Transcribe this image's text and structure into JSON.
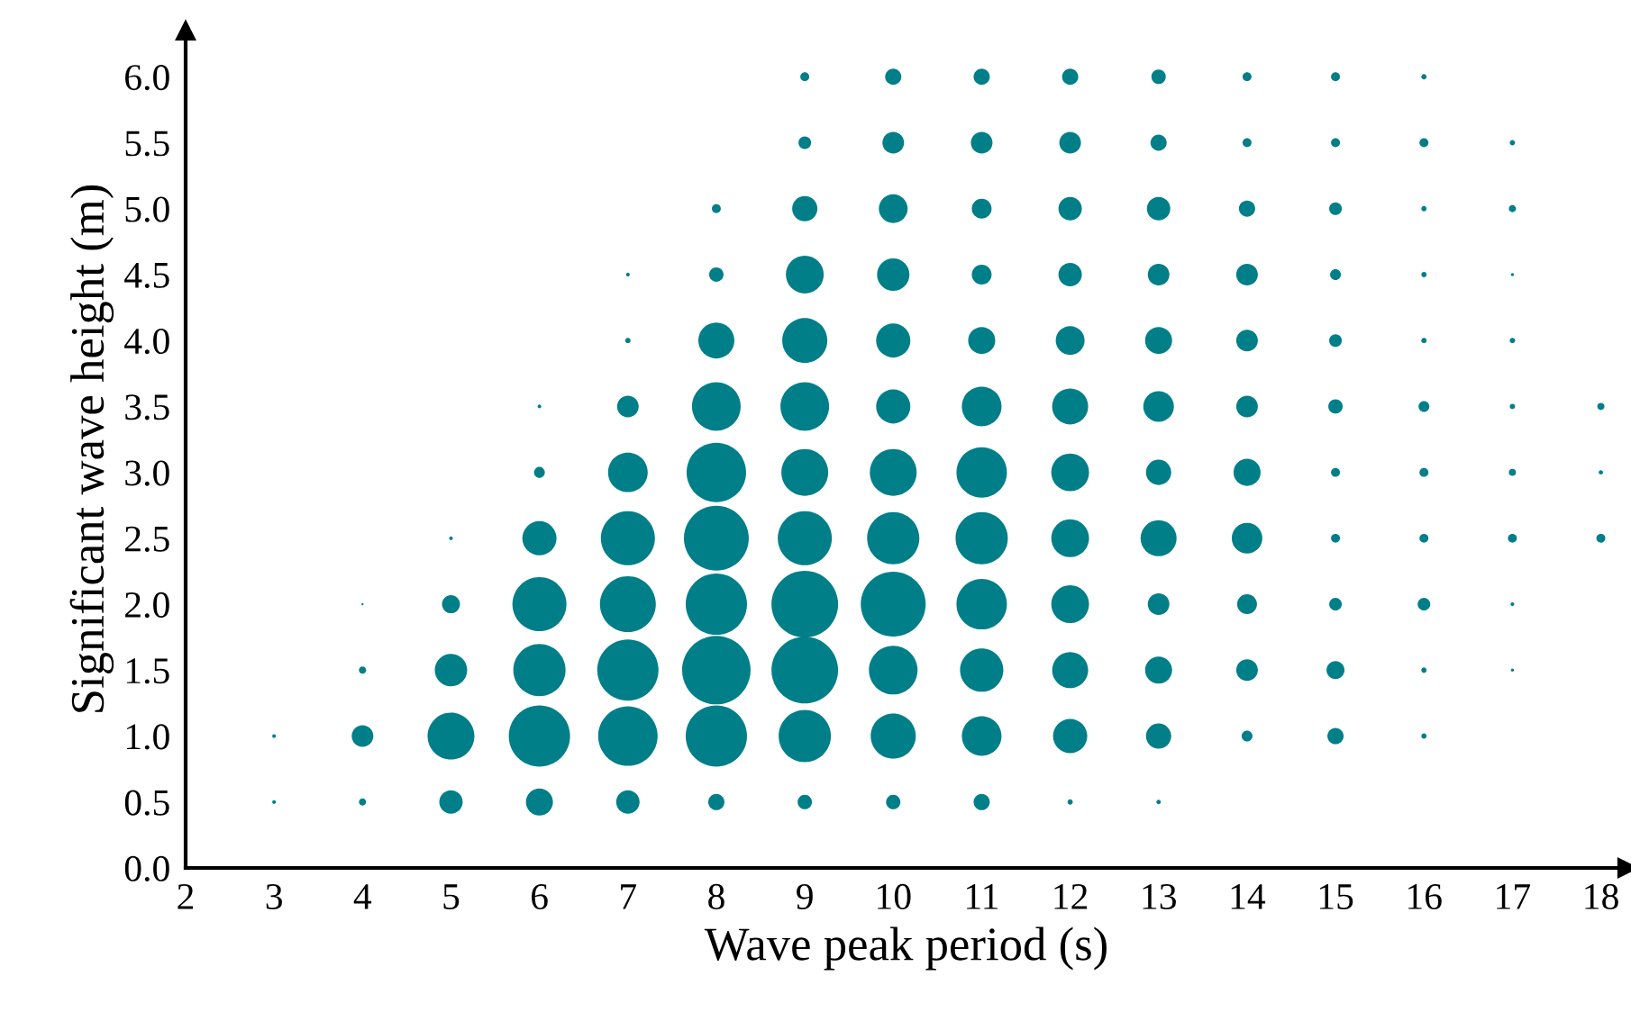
{
  "chart_data": {
    "type": "bubble",
    "xlabel": "Wave peak period (s)",
    "ylabel": "Significant wave height (m)",
    "xlim": [
      2,
      18.3
    ],
    "ylim": [
      0,
      6.35
    ],
    "xticks": [
      2,
      3,
      4,
      5,
      6,
      7,
      8,
      9,
      10,
      11,
      12,
      13,
      14,
      15,
      16,
      17,
      18
    ],
    "yticks": [
      {
        "value": 0,
        "label": "0.0"
      },
      {
        "value": 0.5,
        "label": "0.5"
      },
      {
        "value": 1,
        "label": "1.0"
      },
      {
        "value": 1.5,
        "label": "1.5"
      },
      {
        "value": 2,
        "label": "2.0"
      },
      {
        "value": 2.5,
        "label": "2.5"
      },
      {
        "value": 3,
        "label": "3.0"
      },
      {
        "value": 3.5,
        "label": "3.5"
      },
      {
        "value": 4,
        "label": "4.0"
      },
      {
        "value": 4.5,
        "label": "4.5"
      },
      {
        "value": 5,
        "label": "5.0"
      },
      {
        "value": 5.5,
        "label": "5.5"
      },
      {
        "value": 6,
        "label": "6.0"
      }
    ],
    "grid": false,
    "legend": false,
    "series": [
      {
        "color": "#007f89",
        "x": [
          3,
          3,
          4,
          4,
          4,
          4,
          5,
          5,
          5,
          5,
          5,
          6,
          6,
          6,
          6,
          6,
          6,
          6,
          7,
          7,
          7,
          7,
          7,
          7,
          7,
          7,
          7,
          8,
          8,
          8,
          8,
          8,
          8,
          8,
          8,
          8,
          8,
          9,
          9,
          9,
          9,
          9,
          9,
          9,
          9,
          9,
          9,
          9,
          9,
          10,
          10,
          10,
          10,
          10,
          10,
          10,
          10,
          10,
          10,
          10,
          10,
          11,
          11,
          11,
          11,
          11,
          11,
          11,
          11,
          11,
          11,
          11,
          11,
          12,
          12,
          12,
          12,
          12,
          12,
          12,
          12,
          12,
          12,
          12,
          12,
          13,
          13,
          13,
          13,
          13,
          13,
          13,
          13,
          13,
          13,
          13,
          13,
          14,
          14,
          14,
          14,
          14,
          14,
          14,
          14,
          14,
          14,
          14,
          15,
          15,
          15,
          15,
          15,
          15,
          15,
          15,
          15,
          15,
          15,
          16,
          16,
          16,
          16,
          16,
          16,
          16,
          16,
          16,
          16,
          16,
          17,
          17,
          17,
          17,
          17,
          17,
          17,
          17,
          17,
          18,
          18,
          18
        ],
        "values": [
          0.5,
          1,
          0.5,
          1,
          1.5,
          2,
          0.5,
          1,
          1.5,
          2,
          2.5,
          0.5,
          1,
          1.5,
          2,
          2.5,
          3,
          3.5,
          0.5,
          1,
          1.5,
          2,
          2.5,
          3,
          3.5,
          4,
          4.5,
          0.5,
          1,
          1.5,
          2,
          2.5,
          3,
          3.5,
          4,
          4.5,
          5,
          0.5,
          1,
          1.5,
          2,
          2.5,
          3,
          3.5,
          4,
          4.5,
          5,
          5.5,
          6,
          0.5,
          1,
          1.5,
          2,
          2.5,
          3,
          3.5,
          4,
          4.5,
          5,
          5.5,
          6,
          0.5,
          1,
          1.5,
          2,
          2.5,
          3,
          3.5,
          4,
          4.5,
          5,
          5.5,
          6,
          0.5,
          1,
          1.5,
          2,
          2.5,
          3,
          3.5,
          4,
          4.5,
          5,
          5.5,
          6,
          0.5,
          1,
          1.5,
          2,
          2.5,
          3,
          3.5,
          4,
          4.5,
          5,
          5.5,
          6,
          1,
          1.5,
          2,
          2.5,
          3,
          3.5,
          4,
          4.5,
          5,
          5.5,
          6,
          1,
          1.5,
          2,
          2.5,
          3,
          3.5,
          4,
          4.5,
          5,
          5.5,
          6,
          1,
          1.5,
          2,
          2.5,
          3,
          3.5,
          4,
          4.5,
          5,
          5.5,
          6,
          1.5,
          2,
          2.5,
          3,
          3.5,
          4,
          4.5,
          5,
          5.5,
          2.5,
          3,
          3.5
        ],
        "sizes": [
          0.003,
          0.003,
          0.011,
          0.1,
          0.011,
          0.001,
          0.117,
          0.468,
          0.224,
          0.069,
          0.003,
          0.156,
          0.801,
          0.582,
          0.623,
          0.25,
          0.025,
          0.003,
          0.117,
          0.754,
          0.801,
          0.666,
          0.623,
          0.335,
          0.1,
          0.006,
          0.003,
          0.056,
          0.801,
          1,
          0.801,
          0.898,
          0.754,
          0.505,
          0.277,
          0.044,
          0.017,
          0.044,
          0.582,
          0.948,
          0.948,
          0.623,
          0.468,
          0.505,
          0.433,
          0.305,
          0.136,
          0.034,
          0.017,
          0.044,
          0.433,
          0.505,
          0.898,
          0.582,
          0.468,
          0.25,
          0.25,
          0.224,
          0.177,
          0.1,
          0.056,
          0.056,
          0.335,
          0.399,
          0.543,
          0.582,
          0.543,
          0.335,
          0.156,
          0.084,
          0.084,
          0.1,
          0.056,
          0.006,
          0.25,
          0.277,
          0.305,
          0.305,
          0.305,
          0.277,
          0.177,
          0.117,
          0.117,
          0.1,
          0.056,
          0.004,
          0.136,
          0.156,
          0.1,
          0.277,
          0.136,
          0.2,
          0.156,
          0.1,
          0.117,
          0.056,
          0.044,
          0.025,
          0.1,
          0.084,
          0.2,
          0.156,
          0.1,
          0.1,
          0.1,
          0.056,
          0.017,
          0.017,
          0.056,
          0.069,
          0.034,
          0.017,
          0.017,
          0.044,
          0.034,
          0.025,
          0.034,
          0.017,
          0.017,
          0.006,
          0.006,
          0.034,
          0.017,
          0.017,
          0.025,
          0.006,
          0.006,
          0.006,
          0.017,
          0.006,
          0.002,
          0.003,
          0.017,
          0.011,
          0.006,
          0.006,
          0.002,
          0.011,
          0.006,
          0.017,
          0.004,
          0.011
        ]
      }
    ]
  }
}
